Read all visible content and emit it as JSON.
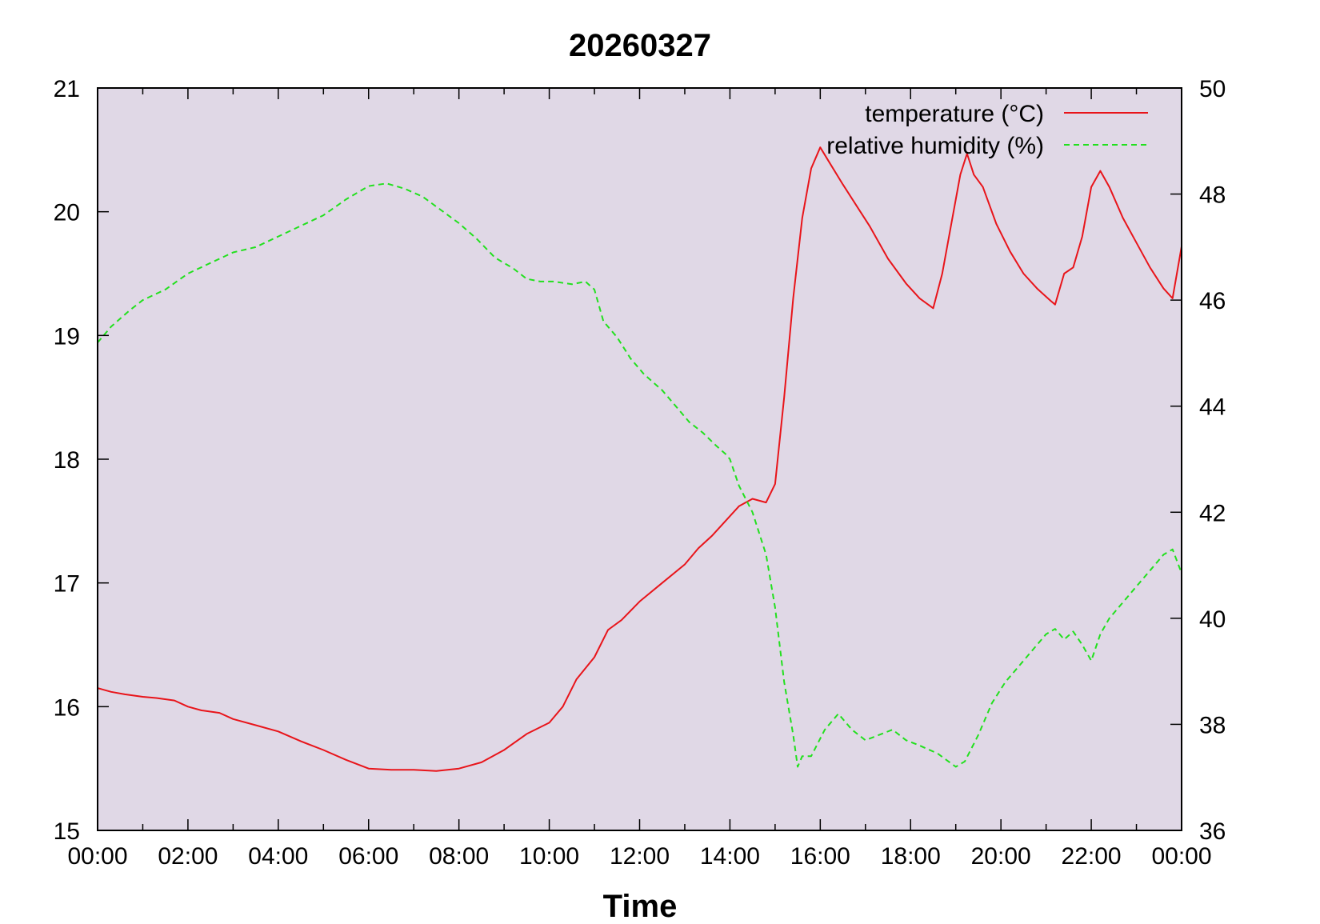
{
  "chart_data": {
    "type": "line",
    "title": "20260327",
    "xlabel": "Time",
    "ylabel": "",
    "y2label": "",
    "background_color": "#e0d8e6",
    "legend_position": "top-right",
    "grid": false,
    "x_ticks": [
      "00:00",
      "02:00",
      "04:00",
      "06:00",
      "08:00",
      "10:00",
      "12:00",
      "14:00",
      "16:00",
      "18:00",
      "20:00",
      "22:00",
      "00:00"
    ],
    "xlim_hours": [
      0,
      24
    ],
    "y_left": {
      "ylim": [
        15,
        21
      ],
      "ticks": [
        "15",
        "16",
        "17",
        "18",
        "19",
        "20",
        "21"
      ]
    },
    "y_right": {
      "ylim": [
        36,
        50
      ],
      "ticks": [
        "36",
        "38",
        "40",
        "42",
        "44",
        "46",
        "48",
        "50"
      ]
    },
    "series": [
      {
        "name": "temperature (°C)",
        "axis": "left",
        "color": "#e8141a",
        "dash": "solid",
        "x_hours": [
          0.0,
          0.3,
          0.6,
          1.0,
          1.3,
          1.7,
          2.0,
          2.3,
          2.7,
          3.0,
          3.5,
          4.0,
          4.5,
          5.0,
          5.5,
          6.0,
          6.5,
          7.0,
          7.5,
          8.0,
          8.5,
          9.0,
          9.5,
          10.0,
          10.3,
          10.6,
          11.0,
          11.3,
          11.6,
          12.0,
          12.5,
          13.0,
          13.3,
          13.6,
          13.9,
          14.2,
          14.5,
          14.8,
          15.0,
          15.2,
          15.4,
          15.6,
          15.8,
          16.0,
          16.2,
          16.5,
          16.8,
          17.1,
          17.5,
          17.9,
          18.2,
          18.5,
          18.7,
          18.9,
          19.1,
          19.25,
          19.4,
          19.6,
          19.9,
          20.2,
          20.5,
          20.8,
          21.1,
          21.2,
          21.4,
          21.6,
          21.8,
          22.0,
          22.2,
          22.4,
          22.7,
          23.0,
          23.3,
          23.6,
          23.8,
          24.0
        ],
        "values": [
          16.15,
          16.12,
          16.1,
          16.08,
          16.07,
          16.05,
          16.0,
          15.97,
          15.95,
          15.9,
          15.85,
          15.8,
          15.72,
          15.65,
          15.57,
          15.5,
          15.49,
          15.49,
          15.48,
          15.5,
          15.55,
          15.65,
          15.78,
          15.87,
          16.0,
          16.22,
          16.4,
          16.62,
          16.7,
          16.85,
          17.0,
          17.15,
          17.28,
          17.38,
          17.5,
          17.62,
          17.68,
          17.65,
          17.8,
          18.5,
          19.3,
          19.95,
          20.35,
          20.52,
          20.4,
          20.22,
          20.05,
          19.88,
          19.62,
          19.42,
          19.3,
          19.22,
          19.5,
          19.9,
          20.3,
          20.47,
          20.3,
          20.2,
          19.9,
          19.68,
          19.5,
          19.38,
          19.28,
          19.25,
          19.5,
          19.55,
          19.8,
          20.2,
          20.33,
          20.2,
          19.95,
          19.75,
          19.55,
          19.38,
          19.3,
          19.72
        ]
      },
      {
        "name": "relative humidity (%)",
        "axis": "right",
        "color": "#22e01e",
        "dash": "dashed",
        "x_hours": [
          0.0,
          0.3,
          0.7,
          1.0,
          1.5,
          2.0,
          2.5,
          3.0,
          3.5,
          4.0,
          4.5,
          5.0,
          5.5,
          6.0,
          6.4,
          6.8,
          7.2,
          7.6,
          8.0,
          8.4,
          8.8,
          9.2,
          9.5,
          9.8,
          10.1,
          10.5,
          10.8,
          11.0,
          11.2,
          11.5,
          11.8,
          12.1,
          12.5,
          12.8,
          13.1,
          13.4,
          13.7,
          13.9,
          14.0,
          14.2,
          14.5,
          14.8,
          15.0,
          15.2,
          15.4,
          15.5,
          15.6,
          15.8,
          16.1,
          16.4,
          16.7,
          17.0,
          17.3,
          17.6,
          17.9,
          18.2,
          18.6,
          19.0,
          19.2,
          19.5,
          19.8,
          20.1,
          20.4,
          20.7,
          21.0,
          21.2,
          21.4,
          21.6,
          21.8,
          22.0,
          22.2,
          22.4,
          22.7,
          23.0,
          23.3,
          23.6,
          23.8,
          24.0
        ],
        "values": [
          45.2,
          45.5,
          45.8,
          46.0,
          46.2,
          46.5,
          46.7,
          46.9,
          47.0,
          47.2,
          47.4,
          47.6,
          47.9,
          48.15,
          48.2,
          48.1,
          47.95,
          47.7,
          47.45,
          47.15,
          46.8,
          46.6,
          46.4,
          46.35,
          46.35,
          46.3,
          46.35,
          46.2,
          45.6,
          45.3,
          44.9,
          44.6,
          44.3,
          44.0,
          43.7,
          43.5,
          43.25,
          43.1,
          43.0,
          42.5,
          42.0,
          41.2,
          40.2,
          38.8,
          37.8,
          37.2,
          37.4,
          37.4,
          37.9,
          38.2,
          37.9,
          37.7,
          37.8,
          37.9,
          37.7,
          37.6,
          37.45,
          37.2,
          37.3,
          37.8,
          38.4,
          38.8,
          39.1,
          39.4,
          39.7,
          39.8,
          39.6,
          39.75,
          39.5,
          39.2,
          39.7,
          40.0,
          40.3,
          40.6,
          40.9,
          41.2,
          41.3,
          40.85
        ]
      }
    ]
  }
}
